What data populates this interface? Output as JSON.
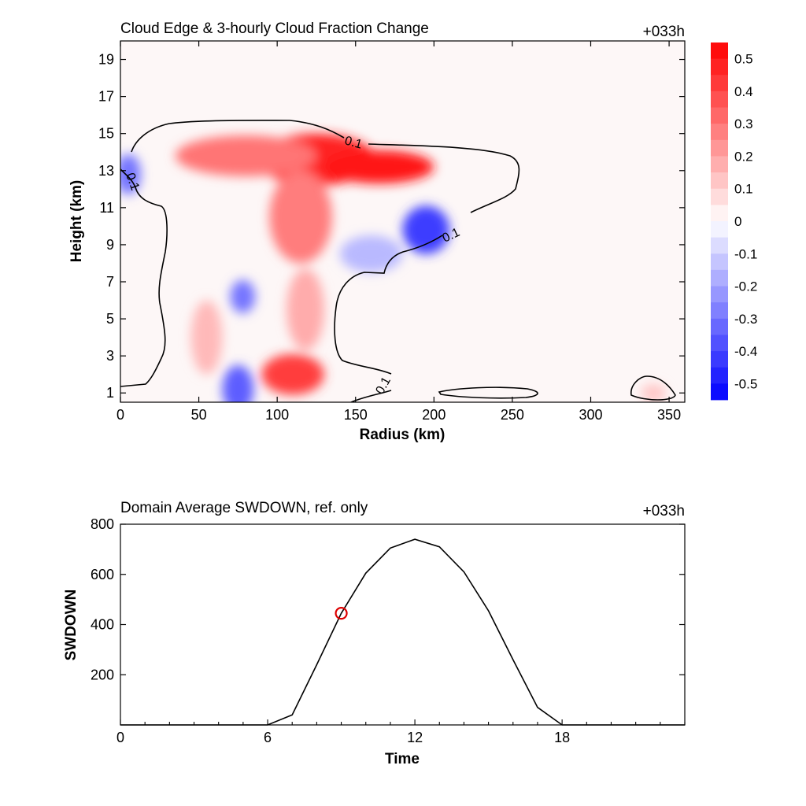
{
  "chart_data": [
    {
      "type": "heatmap",
      "title": "Cloud Edge & 3-hourly Cloud Fraction Change",
      "timestamp": "+033h",
      "xlabel": "Radius (km)",
      "ylabel": "Height (km)",
      "xlim": [
        0,
        360
      ],
      "ylim": [
        0.5,
        20
      ],
      "xticks": [
        "0",
        "50",
        "100",
        "150",
        "200",
        "250",
        "300",
        "350"
      ],
      "yticks": [
        "1",
        "3",
        "5",
        "7",
        "9",
        "11",
        "13",
        "15",
        "17",
        "19"
      ],
      "colorbar": {
        "levels": [
          0.5,
          0.4,
          0.3,
          0.2,
          0.1,
          0,
          -0.1,
          -0.2,
          -0.3,
          -0.4,
          -0.5
        ],
        "labels": [
          "0.5",
          "0.4",
          "0.3",
          "0.2",
          "0.1",
          "0",
          "-0.1",
          "-0.2",
          "-0.3",
          "-0.4",
          "-0.5"
        ],
        "max_color": "#ff0000",
        "mid_color": "#ffffff",
        "min_color": "#0000ff"
      },
      "contour_level_label": "0.1",
      "blobs": [
        {
          "x": 125,
          "y": 13.6,
          "rx": 38,
          "ry": 1.4,
          "v": 0.48
        },
        {
          "x": 165,
          "y": 13.2,
          "rx": 35,
          "ry": 0.9,
          "v": 0.5
        },
        {
          "x": 80,
          "y": 13.8,
          "rx": 45,
          "ry": 1.1,
          "v": 0.3
        },
        {
          "x": 115,
          "y": 10.5,
          "rx": 20,
          "ry": 2.5,
          "v": 0.28
        },
        {
          "x": 110,
          "y": 2.0,
          "rx": 20,
          "ry": 1.1,
          "v": 0.42
        },
        {
          "x": 118,
          "y": 5.5,
          "rx": 12,
          "ry": 2.2,
          "v": 0.18
        },
        {
          "x": 55,
          "y": 4.0,
          "rx": 10,
          "ry": 2.0,
          "v": 0.15
        },
        {
          "x": 195,
          "y": 9.8,
          "rx": 15,
          "ry": 1.3,
          "v": -0.42
        },
        {
          "x": 160,
          "y": 8.5,
          "rx": 20,
          "ry": 1.0,
          "v": -0.15
        },
        {
          "x": 5,
          "y": 12.8,
          "rx": 8,
          "ry": 1.1,
          "v": -0.3
        },
        {
          "x": 78,
          "y": 6.2,
          "rx": 8,
          "ry": 0.9,
          "v": -0.3
        },
        {
          "x": 75,
          "y": 1.2,
          "rx": 10,
          "ry": 1.3,
          "v": -0.35
        },
        {
          "x": 340,
          "y": 1.0,
          "rx": 8,
          "ry": 0.5,
          "v": 0.12
        }
      ]
    },
    {
      "type": "line",
      "title": "Domain Average SWDOWN, ref. only",
      "timestamp": "+033h",
      "xlabel": "Time",
      "ylabel": "SWDOWN",
      "xlim": [
        0,
        23
      ],
      "ylim": [
        0,
        800
      ],
      "xticks": [
        "0",
        "6",
        "12",
        "18"
      ],
      "yticks": [
        "200",
        "400",
        "600",
        "800"
      ],
      "line_color": "#000000",
      "x": [
        0,
        1,
        2,
        3,
        4,
        5,
        6,
        7,
        8,
        9,
        10,
        11,
        12,
        13,
        14,
        15,
        16,
        17,
        18,
        19,
        20,
        21,
        22,
        23
      ],
      "y": [
        0,
        0,
        0,
        0,
        0,
        0,
        0,
        40,
        240,
        445,
        605,
        705,
        740,
        710,
        610,
        455,
        260,
        70,
        0,
        0,
        0,
        0,
        0,
        0
      ],
      "marker": {
        "x": 9,
        "y": 445,
        "color": "#dd0000"
      }
    }
  ]
}
